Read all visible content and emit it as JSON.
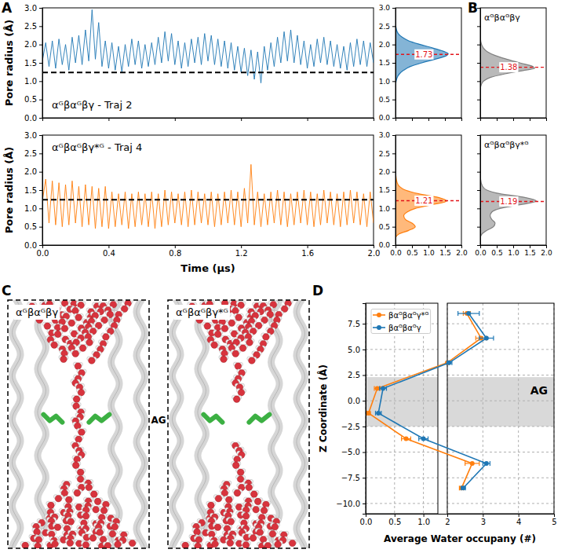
{
  "panel_labels": [
    "A",
    "B",
    "C",
    "D"
  ],
  "panel_c": {
    "panels": [
      {
        "title": "αᴳβαᴳβγ"
      },
      {
        "title": "αᴳβαᴳβγ*ᴳ"
      }
    ],
    "site_label": "AG"
  },
  "chart_data": [
    {
      "type": "line",
      "title": "αᴳβαᴳβγ - Traj 2",
      "ylabel": "Pore radius (Å)",
      "color": "#1f77b4",
      "x": [
        0,
        0.02,
        0.04,
        0.06,
        0.08,
        0.1,
        0.12,
        0.14,
        0.16,
        0.18,
        0.2,
        0.22,
        0.24,
        0.26,
        0.28,
        0.3,
        0.32,
        0.34,
        0.36,
        0.38,
        0.4,
        0.42,
        0.44,
        0.46,
        0.48,
        0.5,
        0.52,
        0.54,
        0.56,
        0.58,
        0.6,
        0.62,
        0.64,
        0.66,
        0.68,
        0.7,
        0.72,
        0.74,
        0.76,
        0.78,
        0.8,
        0.82,
        0.84,
        0.86,
        0.88,
        0.9,
        0.92,
        0.94,
        0.96,
        0.98,
        1,
        1.02,
        1.04,
        1.06,
        1.08,
        1.1,
        1.12,
        1.14,
        1.16,
        1.18,
        1.2,
        1.22,
        1.24,
        1.26,
        1.28,
        1.3,
        1.32,
        1.34,
        1.36,
        1.38,
        1.4,
        1.42,
        1.44,
        1.46,
        1.48,
        1.5,
        1.52,
        1.54,
        1.56,
        1.58,
        1.6,
        1.62,
        1.64,
        1.66,
        1.68,
        1.7,
        1.72,
        1.74,
        1.76,
        1.78,
        1.8,
        1.82,
        1.84,
        1.86,
        1.88,
        1.9,
        1.92,
        1.94,
        1.96,
        1.98,
        2
      ],
      "values": [
        1.55,
        2.05,
        1.4,
        2.1,
        1.35,
        2.15,
        1.45,
        2.0,
        1.3,
        2.2,
        1.5,
        2.25,
        1.45,
        2.4,
        1.55,
        2.95,
        1.6,
        2.6,
        1.4,
        2.1,
        1.35,
        2.05,
        1.3,
        1.95,
        1.25,
        2.0,
        1.4,
        2.15,
        1.45,
        2.1,
        1.35,
        2.0,
        1.4,
        2.05,
        1.45,
        2.2,
        1.5,
        2.35,
        1.55,
        2.3,
        1.45,
        2.1,
        1.35,
        2.05,
        1.4,
        2.15,
        1.5,
        2.2,
        1.45,
        2.3,
        1.55,
        2.25,
        1.45,
        2.15,
        1.4,
        2.1,
        1.35,
        2.05,
        1.3,
        1.95,
        1.25,
        1.9,
        1.15,
        1.85,
        1.05,
        1.8,
        0.95,
        1.95,
        1.3,
        2.05,
        1.4,
        2.2,
        1.5,
        2.35,
        1.55,
        2.4,
        1.5,
        2.25,
        1.45,
        2.1,
        1.35,
        2.0,
        1.4,
        2.15,
        1.5,
        2.2,
        1.45,
        2.1,
        1.4,
        2.0,
        1.35,
        1.95,
        1.3,
        2.05,
        1.4,
        2.15,
        1.45,
        2.1,
        1.4,
        2.05,
        1.5
      ],
      "reference_line": 1.24,
      "line_style": "dashed",
      "xlim": [
        0,
        2
      ],
      "xticks": [
        {
          "value": 0,
          "label": "0.0"
        },
        0.4,
        0.8,
        1.2,
        1.6,
        {
          "value": 2,
          "label": "2.0"
        }
      ],
      "ylim": [
        0,
        3
      ],
      "yticks": [
        {
          "value": 0,
          "label": "0.0"
        },
        0.5,
        {
          "value": 1,
          "label": "1.0"
        },
        1.5,
        {
          "value": 2,
          "label": "2.0"
        },
        2.5,
        {
          "value": 3,
          "label": "3.0"
        }
      ],
      "tick_labels": "y"
    },
    {
      "type": "area",
      "orientation": "horizontal",
      "color": "#1f77b4",
      "x": [
        0.9,
        1.0,
        1.1,
        1.2,
        1.3,
        1.4,
        1.5,
        1.6,
        1.7,
        1.75,
        1.8,
        1.9,
        2.0,
        2.1,
        2.2,
        2.3,
        2.4,
        2.6
      ],
      "values": [
        0,
        0.02,
        0.05,
        0.12,
        0.25,
        0.45,
        0.8,
        1.2,
        1.55,
        1.6,
        1.5,
        1.15,
        0.75,
        0.4,
        0.2,
        0.08,
        0.03,
        0
      ],
      "mean": 1.73,
      "xlim": [
        0,
        3
      ],
      "xticks": [
        {
          "value": 0,
          "label": "0.0"
        },
        0.5,
        {
          "value": 1,
          "label": "1.0"
        },
        1.5,
        {
          "value": 2,
          "label": "2.0"
        },
        2.5,
        {
          "value": 3,
          "label": "3.0"
        }
      ],
      "ylim": [
        0,
        2
      ],
      "yticks": [
        {
          "value": 0,
          "label": "0.0"
        },
        0.5,
        {
          "value": 1,
          "label": "1.0"
        },
        1.5,
        {
          "value": 2,
          "label": "2.0"
        }
      ],
      "tick_labels": "x"
    },
    {
      "type": "area",
      "orientation": "horizontal",
      "title": "αᴳβαᴳβγ",
      "color": "#808080",
      "x": [
        0.8,
        0.9,
        1.0,
        1.1,
        1.2,
        1.3,
        1.35,
        1.4,
        1.5,
        1.6,
        1.7,
        1.8,
        1.9,
        2.0,
        2.2
      ],
      "values": [
        0,
        0.03,
        0.1,
        0.3,
        0.75,
        1.35,
        1.65,
        1.6,
        1.2,
        0.8,
        0.45,
        0.22,
        0.1,
        0.04,
        0
      ],
      "mean": 1.38,
      "xlim": [
        0,
        3
      ],
      "xticks": [
        {
          "value": 0,
          "label": "0.0"
        },
        0.5,
        {
          "value": 1,
          "label": "1.0"
        },
        1.5,
        {
          "value": 2,
          "label": "2.0"
        },
        2.5,
        {
          "value": 3,
          "label": "3.0"
        }
      ],
      "ylim": [
        0,
        2
      ],
      "yticks": [
        {
          "value": 0,
          "label": "0.0"
        },
        0.5,
        {
          "value": 1,
          "label": "1.0"
        },
        1.5,
        {
          "value": 2,
          "label": "2.0"
        }
      ],
      "tick_labels": false
    },
    {
      "type": "line",
      "title": "αᴳβαᴳβγ*ᴳ - Traj 4",
      "ylabel": "Pore radius (Å)",
      "xlabel": "Time (μs)",
      "color": "#ff7f0e",
      "x": [
        0,
        0.02,
        0.04,
        0.06,
        0.08,
        0.1,
        0.12,
        0.14,
        0.16,
        0.18,
        0.2,
        0.22,
        0.24,
        0.26,
        0.28,
        0.3,
        0.32,
        0.34,
        0.36,
        0.38,
        0.4,
        0.42,
        0.44,
        0.46,
        0.48,
        0.5,
        0.52,
        0.54,
        0.56,
        0.58,
        0.6,
        0.62,
        0.64,
        0.66,
        0.68,
        0.7,
        0.72,
        0.74,
        0.76,
        0.78,
        0.8,
        0.82,
        0.84,
        0.86,
        0.88,
        0.9,
        0.92,
        0.94,
        0.96,
        0.98,
        1,
        1.02,
        1.04,
        1.06,
        1.08,
        1.1,
        1.12,
        1.14,
        1.16,
        1.18,
        1.2,
        1.22,
        1.24,
        1.26,
        1.28,
        1.3,
        1.32,
        1.34,
        1.36,
        1.38,
        1.4,
        1.42,
        1.44,
        1.46,
        1.48,
        1.5,
        1.52,
        1.54,
        1.56,
        1.58,
        1.6,
        1.62,
        1.64,
        1.66,
        1.68,
        1.7,
        1.72,
        1.74,
        1.76,
        1.78,
        1.8,
        1.82,
        1.84,
        1.86,
        1.88,
        1.9,
        1.92,
        1.94,
        1.96,
        1.98,
        2
      ],
      "values": [
        1.2,
        1.8,
        0.6,
        1.75,
        0.55,
        1.7,
        0.5,
        1.65,
        0.55,
        1.75,
        0.6,
        1.6,
        0.5,
        1.65,
        0.55,
        1.6,
        0.45,
        1.55,
        0.5,
        1.6,
        0.45,
        1.45,
        0.5,
        1.4,
        0.55,
        1.45,
        0.45,
        1.4,
        0.5,
        1.45,
        0.55,
        1.4,
        0.5,
        1.45,
        0.45,
        1.4,
        0.5,
        1.5,
        0.55,
        1.45,
        0.6,
        1.4,
        0.55,
        1.45,
        0.5,
        1.5,
        0.55,
        1.45,
        0.6,
        1.4,
        0.55,
        1.45,
        0.5,
        1.4,
        0.55,
        1.45,
        0.6,
        1.5,
        0.55,
        1.45,
        0.5,
        1.55,
        0.6,
        2.2,
        0.55,
        1.45,
        0.5,
        1.4,
        0.55,
        1.45,
        0.6,
        1.5,
        0.55,
        1.45,
        0.5,
        1.4,
        0.55,
        1.45,
        0.6,
        1.5,
        0.55,
        1.45,
        0.5,
        1.4,
        0.55,
        1.5,
        0.6,
        1.45,
        0.55,
        1.4,
        0.5,
        1.45,
        0.55,
        1.5,
        0.6,
        1.45,
        0.55,
        1.4,
        0.5,
        1.45,
        0.6
      ],
      "reference_line": 1.24,
      "line_style": "dashed",
      "xlim": [
        0,
        2
      ],
      "xticks": [
        {
          "value": 0,
          "label": "0.0"
        },
        0.4,
        0.8,
        1.2,
        1.6,
        {
          "value": 2,
          "label": "2.0"
        }
      ],
      "ylim": [
        0,
        3
      ],
      "yticks": [
        {
          "value": 0,
          "label": "0.0"
        },
        0.5,
        {
          "value": 1,
          "label": "1.0"
        },
        1.5,
        {
          "value": 2,
          "label": "2.0"
        },
        2.5,
        {
          "value": 3,
          "label": "3.0"
        }
      ],
      "tick_labels": true
    },
    {
      "type": "area",
      "orientation": "horizontal",
      "color": "#ff7f0e",
      "x": [
        0.2,
        0.3,
        0.4,
        0.5,
        0.6,
        0.7,
        0.8,
        0.9,
        1.0,
        1.1,
        1.2,
        1.3,
        1.4,
        1.5,
        1.6,
        1.7,
        1.9,
        2.1
      ],
      "values": [
        0,
        0.1,
        0.4,
        0.6,
        0.5,
        0.3,
        0.25,
        0.35,
        0.6,
        1.1,
        1.55,
        1.3,
        0.7,
        0.3,
        0.12,
        0.05,
        0.01,
        0
      ],
      "mean": 1.21,
      "xlim": [
        0,
        3
      ],
      "xticks": [
        {
          "value": 0,
          "label": "0.0"
        },
        0.5,
        {
          "value": 1,
          "label": "1.0"
        },
        1.5,
        {
          "value": 2,
          "label": "2.0"
        },
        2.5,
        {
          "value": 3,
          "label": "3.0"
        }
      ],
      "ylim": [
        0,
        2
      ],
      "yticks": [
        {
          "value": 0,
          "label": "0.0"
        },
        0.5,
        {
          "value": 1,
          "label": "1.0"
        },
        1.5,
        {
          "value": 2,
          "label": "2.0"
        }
      ],
      "tick_labels": true
    },
    {
      "type": "area",
      "orientation": "horizontal",
      "title": "αᴳβαᴳβγ*ᴳ",
      "color": "#808080",
      "x": [
        0.2,
        0.3,
        0.4,
        0.5,
        0.6,
        0.7,
        0.8,
        0.9,
        1.0,
        1.1,
        1.2,
        1.3,
        1.4,
        1.5,
        1.6,
        1.8,
        2.0
      ],
      "values": [
        0,
        0.05,
        0.2,
        0.4,
        0.45,
        0.35,
        0.3,
        0.35,
        0.6,
        1.2,
        1.7,
        1.35,
        0.6,
        0.2,
        0.07,
        0.01,
        0
      ],
      "mean": 1.19,
      "xlim": [
        0,
        3
      ],
      "xticks": [
        {
          "value": 0,
          "label": "0.0"
        },
        0.5,
        {
          "value": 1,
          "label": "1.0"
        },
        1.5,
        {
          "value": 2,
          "label": "2.0"
        },
        2.5,
        {
          "value": 3,
          "label": "3.0"
        }
      ],
      "ylim": [
        0,
        2
      ],
      "yticks": [
        {
          "value": 0,
          "label": "0.0"
        },
        0.5,
        {
          "value": 1,
          "label": "1.0"
        },
        1.5,
        {
          "value": 2,
          "label": "2.0"
        }
      ],
      "tick_labels": "y"
    },
    {
      "type": "line",
      "orientation": "horizontal",
      "xlabel": "Z Coordinate (Å)",
      "ylabel": "Average Water occupany (#)",
      "x": [
        8.5,
        6.1,
        3.7,
        1.2,
        -1.2,
        -3.7,
        -6.1,
        -8.5
      ],
      "series": [
        {
          "name": "βαᴳβαᴳγ*ᴳ",
          "color": "#ff7f0e",
          "marker": "o",
          "values": [
            2.55,
            2.95,
            2.0,
            0.2,
            0.05,
            0.7,
            2.7,
            2.4
          ],
          "errors": [
            0.1,
            0.15,
            0.05,
            0.05,
            0.03,
            0.08,
            0.2,
            0.06
          ]
        },
        {
          "name": "βαᴳβαᴳγ",
          "color": "#1f77b4",
          "marker": "o",
          "values": [
            2.6,
            3.1,
            2.05,
            0.3,
            0.22,
            1.0,
            3.1,
            2.45
          ],
          "errors": [
            0.3,
            0.2,
            0.08,
            0.06,
            0.05,
            0.08,
            0.1,
            0.06
          ]
        }
      ],
      "band": [
        -2.5,
        2.3
      ],
      "band_label": "AG",
      "xlim": [
        -11,
        9.5
      ],
      "xticks": [
        {
          "value": -10,
          "label": "−10.0"
        },
        {
          "value": -7.5,
          "label": "−7.5"
        },
        {
          "value": -5,
          "label": "−5.0"
        },
        {
          "value": -2.5,
          "label": "−2.5"
        },
        {
          "value": 0,
          "label": "0.0"
        },
        2.5,
        {
          "value": 5,
          "label": "5.0"
        },
        7.5
      ],
      "ylim": [
        0,
        5
      ],
      "y_break": [
        1.25,
        2
      ],
      "yticks": [
        {
          "value": 0,
          "label": "0.0"
        },
        0.5,
        {
          "value": 1,
          "label": "1.0"
        },
        2,
        3,
        4,
        5
      ],
      "grid": true,
      "legend": "top-left"
    }
  ]
}
